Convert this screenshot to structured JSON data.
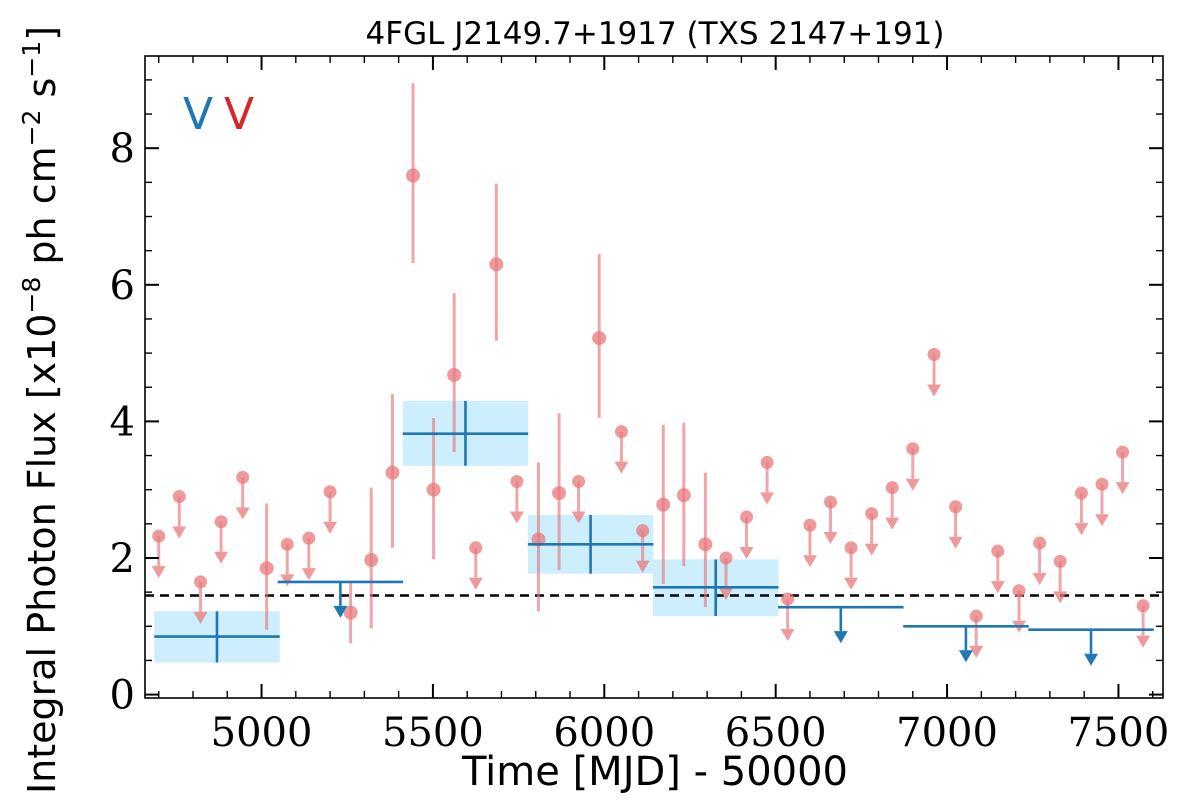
{
  "chart_data": {
    "type": "scatter",
    "title": "4FGL J2149.7+1917 (TXS 2147+191)",
    "xlabel": "Time [MJD] - 50000",
    "ylabel_main": "Integral Photon Flux [x10",
    "ylabel_exp1": "−8",
    "ylabel_mid": " ph cm",
    "ylabel_exp2": "−2",
    "ylabel_mid2": " s",
    "ylabel_exp3": "−1",
    "ylabel_end": "]",
    "xlim": [
      4660,
      7630
    ],
    "ylim": [
      -0.05,
      9.35
    ],
    "xticks": [
      5000,
      5500,
      6000,
      6500,
      7000,
      7500
    ],
    "xtick_labels": [
      "5000",
      "5500",
      "6000",
      "6500",
      "7000",
      "7500"
    ],
    "yticks": [
      0,
      2,
      4,
      6,
      8
    ],
    "ytick_labels": [
      "0",
      "2",
      "4",
      "6",
      "8"
    ],
    "legend_labels": [
      "V",
      "V"
    ],
    "legend_placement": "top-left",
    "reference_level": 1.45,
    "colors": {
      "blue": "#1f77b4",
      "red": "#d62728",
      "red_points": "#e8787c",
      "band": "#cdeefc",
      "reference": "#000000"
    },
    "series": [
      {
        "color_key": "blue",
        "binned_detections": [
          {
            "x": 4870,
            "xerr": 183,
            "y": 0.85,
            "ylo": 0.47,
            "yhi": 1.22
          },
          {
            "x": 5595,
            "xerr": 183,
            "y": 3.82,
            "ylo": 3.35,
            "yhi": 4.3
          },
          {
            "x": 5960,
            "xerr": 183,
            "y": 2.2,
            "ylo": 1.77,
            "yhi": 2.63
          },
          {
            "x": 6325,
            "xerr": 183,
            "y": 1.57,
            "ylo": 1.15,
            "yhi": 1.98
          }
        ],
        "binned_upper_limits": [
          {
            "x": 5230,
            "xerr": 183,
            "y": 1.65
          },
          {
            "x": 6690,
            "xerr": 183,
            "y": 1.28
          },
          {
            "x": 7055,
            "xerr": 183,
            "y": 1.0
          },
          {
            "x": 7420,
            "xerr": 183,
            "y": 0.95
          }
        ]
      },
      {
        "color_key": "red",
        "detections": [
          {
            "x": 5015,
            "y": 1.85,
            "ylo": 0.95,
            "yhi": 2.8
          },
          {
            "x": 5260,
            "y": 1.2,
            "ylo": 0.75,
            "yhi": 1.65
          },
          {
            "x": 5320,
            "y": 1.97,
            "ylo": 0.97,
            "yhi": 3.03
          },
          {
            "x": 5382,
            "y": 3.25,
            "ylo": 2.15,
            "yhi": 4.4
          },
          {
            "x": 5442,
            "y": 7.6,
            "ylo": 6.32,
            "yhi": 8.95
          },
          {
            "x": 5502,
            "y": 3.0,
            "ylo": 1.98,
            "yhi": 4.05
          },
          {
            "x": 5562,
            "y": 4.68,
            "ylo": 3.55,
            "yhi": 5.88
          },
          {
            "x": 5685,
            "y": 6.3,
            "ylo": 5.18,
            "yhi": 7.48
          },
          {
            "x": 5808,
            "y": 2.27,
            "ylo": 1.22,
            "yhi": 3.4
          },
          {
            "x": 5868,
            "y": 2.95,
            "ylo": 1.82,
            "yhi": 4.12
          },
          {
            "x": 5985,
            "y": 5.22,
            "ylo": 4.05,
            "yhi": 6.45
          },
          {
            "x": 6172,
            "y": 2.78,
            "ylo": 1.62,
            "yhi": 3.95
          },
          {
            "x": 6232,
            "y": 2.92,
            "ylo": 1.88,
            "yhi": 3.98
          },
          {
            "x": 6295,
            "y": 2.2,
            "ylo": 1.28,
            "yhi": 3.25
          }
        ],
        "upper_limits": [
          {
            "x": 4700,
            "y": 2.32
          },
          {
            "x": 4760,
            "y": 2.9
          },
          {
            "x": 4822,
            "y": 1.65
          },
          {
            "x": 4882,
            "y": 2.53
          },
          {
            "x": 4945,
            "y": 3.18
          },
          {
            "x": 5075,
            "y": 2.2
          },
          {
            "x": 5138,
            "y": 2.29
          },
          {
            "x": 5200,
            "y": 2.97
          },
          {
            "x": 5625,
            "y": 2.15
          },
          {
            "x": 5745,
            "y": 3.12
          },
          {
            "x": 5925,
            "y": 3.12
          },
          {
            "x": 6112,
            "y": 2.4
          },
          {
            "x": 6050,
            "y": 3.85
          },
          {
            "x": 6355,
            "y": 2.0
          },
          {
            "x": 6415,
            "y": 2.6
          },
          {
            "x": 6475,
            "y": 3.4
          },
          {
            "x": 6535,
            "y": 1.4
          },
          {
            "x": 6600,
            "y": 2.48
          },
          {
            "x": 6660,
            "y": 2.82
          },
          {
            "x": 6720,
            "y": 2.15
          },
          {
            "x": 6780,
            "y": 2.65
          },
          {
            "x": 6840,
            "y": 3.03
          },
          {
            "x": 6900,
            "y": 3.6
          },
          {
            "x": 6962,
            "y": 4.98
          },
          {
            "x": 7025,
            "y": 2.75
          },
          {
            "x": 7085,
            "y": 1.15
          },
          {
            "x": 7148,
            "y": 2.1
          },
          {
            "x": 7210,
            "y": 1.52
          },
          {
            "x": 7270,
            "y": 2.22
          },
          {
            "x": 7330,
            "y": 1.95
          },
          {
            "x": 7392,
            "y": 2.95
          },
          {
            "x": 7452,
            "y": 3.08
          },
          {
            "x": 7512,
            "y": 3.55
          },
          {
            "x": 7572,
            "y": 1.3
          }
        ]
      }
    ]
  }
}
